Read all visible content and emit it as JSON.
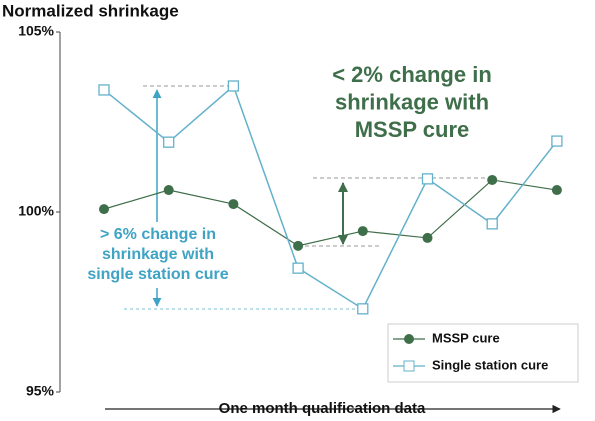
{
  "chart_data": {
    "type": "line",
    "title": "Normalized shrinkage",
    "x_label": "One month qualification data",
    "series": [
      {
        "name": "MSSP cure",
        "color": "#3f6e4a",
        "marker": "circle",
        "values": [
          100.08,
          100.61,
          100.22,
          99.06,
          99.47,
          99.28,
          100.89,
          100.61
        ]
      },
      {
        "name": "Single station cure",
        "color": "#63b1cb",
        "marker": "square",
        "values": [
          103.39,
          101.94,
          103.5,
          98.44,
          97.31,
          100.92,
          99.67,
          101.97
        ]
      }
    ],
    "ylim": [
      95,
      105
    ],
    "yticks": [
      {
        "value": 95,
        "label": "95%"
      },
      {
        "value": 100,
        "label": "100%"
      },
      {
        "value": 105,
        "label": "105%"
      }
    ],
    "annotations": [
      {
        "lines": [
          "< 2% change in",
          "shrinkage with",
          "MSSP cure"
        ],
        "color": "#3f6e4a"
      },
      {
        "lines": [
          "> 6% change in",
          "shrinkage with",
          "single station cure"
        ],
        "color": "#3fa3c4"
      }
    ],
    "legend": "lower right"
  }
}
